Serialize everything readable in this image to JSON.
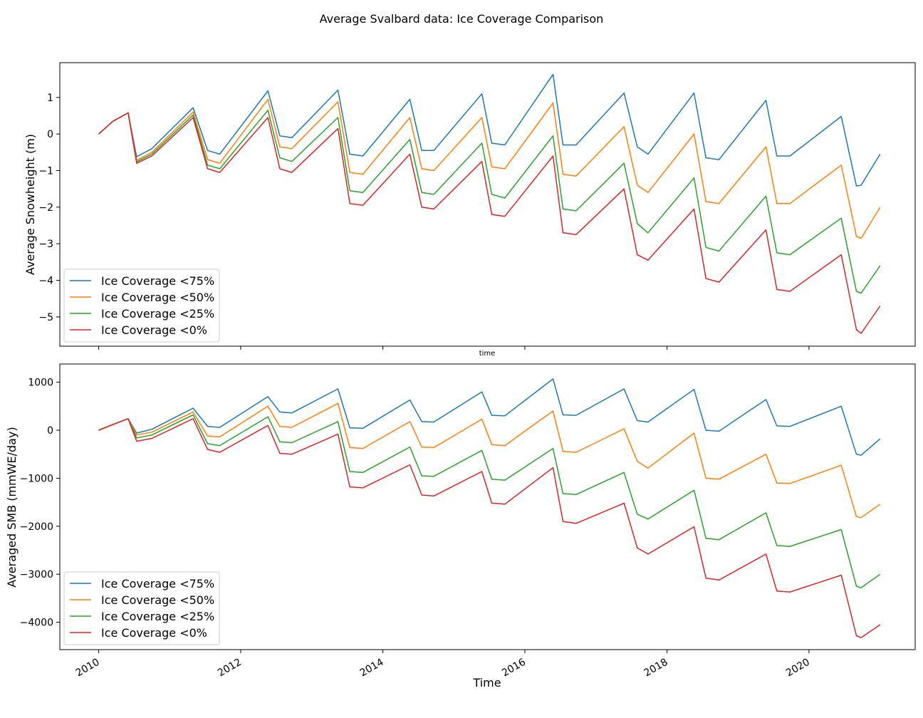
{
  "figure_title": "Average Svalbard data: Ice Coverage Comparison",
  "colors": {
    "series": [
      "#1f77b4",
      "#ff7f0e",
      "#2ca02c",
      "#d62728"
    ],
    "axis": "#000000",
    "legend_border": "#cccccc"
  },
  "chart_data": [
    {
      "type": "line",
      "title": "",
      "xlabel": "time",
      "ylabel": "Average Snowheight (m)",
      "x_axis": "date",
      "xlim": [
        "2009-06-15",
        "2021-06-30"
      ],
      "ylim": [
        -5.8,
        1.95
      ],
      "yticks": [
        1,
        0,
        -1,
        -2,
        -3,
        -4,
        -5
      ],
      "xtick_labels_shown": false,
      "legend_position": "lower-left",
      "x": [
        "2010-01-01",
        "2010-03-15",
        "2010-06-01",
        "2010-07-15",
        "2010-10-01",
        "2011-05-01",
        "2011-07-15",
        "2011-09-15",
        "2012-05-20",
        "2012-07-20",
        "2012-09-20",
        "2013-05-15",
        "2013-07-15",
        "2013-09-20",
        "2014-05-20",
        "2014-07-20",
        "2014-09-20",
        "2015-05-25",
        "2015-07-15",
        "2015-09-20",
        "2016-05-25",
        "2016-07-15",
        "2016-09-20",
        "2017-05-25",
        "2017-08-01",
        "2017-09-25",
        "2018-05-20",
        "2018-07-20",
        "2018-09-25",
        "2019-05-25",
        "2019-07-20",
        "2019-09-25",
        "2020-06-15",
        "2020-09-01",
        "2020-09-25",
        "2021-01-01"
      ],
      "series": [
        {
          "name": "Ice Coverage <75%",
          "values": [
            0.0,
            0.35,
            0.58,
            -0.62,
            -0.4,
            0.72,
            -0.45,
            -0.55,
            1.18,
            -0.05,
            -0.1,
            1.2,
            -0.55,
            -0.6,
            0.95,
            -0.45,
            -0.45,
            1.1,
            -0.25,
            -0.3,
            1.63,
            -0.3,
            -0.3,
            1.12,
            -0.35,
            -0.55,
            1.12,
            -0.65,
            -0.7,
            0.92,
            -0.6,
            -0.6,
            0.48,
            -1.42,
            -1.4,
            -0.55
          ]
        },
        {
          "name": "Ice Coverage <50%",
          "values": [
            0.0,
            0.35,
            0.58,
            -0.72,
            -0.5,
            0.6,
            -0.7,
            -0.8,
            0.95,
            -0.35,
            -0.4,
            0.88,
            -1.05,
            -1.1,
            0.45,
            -0.95,
            -1.0,
            0.45,
            -0.9,
            -0.95,
            0.85,
            -1.1,
            -1.15,
            0.2,
            -1.4,
            -1.6,
            -0.0,
            -1.85,
            -1.9,
            -0.35,
            -1.9,
            -1.9,
            -0.85,
            -2.8,
            -2.85,
            -2.0
          ]
        },
        {
          "name": "Ice Coverage <25%",
          "values": [
            0.0,
            0.35,
            0.58,
            -0.76,
            -0.55,
            0.52,
            -0.85,
            -0.95,
            0.65,
            -0.65,
            -0.75,
            0.45,
            -1.55,
            -1.6,
            -0.15,
            -1.6,
            -1.65,
            -0.25,
            -1.65,
            -1.75,
            -0.05,
            -2.05,
            -2.1,
            -0.8,
            -2.45,
            -2.7,
            -1.2,
            -3.1,
            -3.2,
            -1.7,
            -3.25,
            -3.3,
            -2.3,
            -4.3,
            -4.35,
            -3.6
          ]
        },
        {
          "name": "Ice Coverage <0%",
          "values": [
            0.0,
            0.35,
            0.58,
            -0.8,
            -0.6,
            0.45,
            -0.95,
            -1.05,
            0.45,
            -0.95,
            -1.05,
            0.15,
            -1.9,
            -1.95,
            -0.55,
            -2.0,
            -2.05,
            -0.75,
            -2.2,
            -2.25,
            -0.6,
            -2.7,
            -2.75,
            -1.5,
            -3.3,
            -3.45,
            -2.05,
            -3.95,
            -4.05,
            -2.62,
            -4.25,
            -4.3,
            -3.3,
            -5.35,
            -5.45,
            -4.7
          ]
        }
      ]
    },
    {
      "type": "line",
      "title": "",
      "xlabel": "Time",
      "ylabel": "Averaged SMB (mmWE/day)",
      "x_axis": "date",
      "xlim": [
        "2009-06-15",
        "2021-06-30"
      ],
      "ylim": [
        -4570,
        1380
      ],
      "yticks": [
        1000,
        0,
        -1000,
        -2000,
        -3000,
        -4000
      ],
      "xticks": [
        "2010",
        "2012",
        "2014",
        "2016",
        "2018",
        "2020"
      ],
      "legend_position": "lower-left",
      "x": [
        "2010-01-01",
        "2010-03-15",
        "2010-06-01",
        "2010-07-15",
        "2010-10-01",
        "2011-05-01",
        "2011-07-15",
        "2011-09-15",
        "2012-05-20",
        "2012-07-20",
        "2012-09-20",
        "2013-05-15",
        "2013-07-15",
        "2013-09-20",
        "2014-05-20",
        "2014-07-20",
        "2014-09-20",
        "2015-05-25",
        "2015-07-15",
        "2015-09-20",
        "2016-05-25",
        "2016-07-15",
        "2016-09-20",
        "2017-05-25",
        "2017-08-01",
        "2017-09-25",
        "2018-05-20",
        "2018-07-20",
        "2018-09-25",
        "2019-05-25",
        "2019-07-20",
        "2019-09-25",
        "2020-06-15",
        "2020-09-01",
        "2020-09-25",
        "2021-01-01"
      ],
      "series": [
        {
          "name": "Ice Coverage <75%",
          "values": [
            0,
            120,
            240,
            -60,
            20,
            460,
            80,
            60,
            700,
            380,
            360,
            860,
            50,
            40,
            630,
            180,
            170,
            800,
            310,
            300,
            1070,
            320,
            310,
            860,
            200,
            170,
            850,
            0,
            -20,
            640,
            90,
            80,
            500,
            -500,
            -520,
            -180
          ]
        },
        {
          "name": "Ice Coverage <50%",
          "values": [
            0,
            120,
            240,
            -100,
            -40,
            380,
            -120,
            -140,
            500,
            80,
            60,
            560,
            -360,
            -380,
            180,
            -350,
            -360,
            230,
            -300,
            -320,
            400,
            -440,
            -460,
            30,
            -650,
            -790,
            -60,
            -1000,
            -1020,
            -500,
            -1100,
            -1110,
            -730,
            -1800,
            -1820,
            -1540
          ]
        },
        {
          "name": "Ice Coverage <25%",
          "values": [
            0,
            120,
            240,
            -160,
            -100,
            320,
            -280,
            -320,
            280,
            -240,
            -260,
            180,
            -860,
            -880,
            -350,
            -950,
            -960,
            -420,
            -1020,
            -1040,
            -380,
            -1320,
            -1340,
            -880,
            -1750,
            -1850,
            -1250,
            -2250,
            -2280,
            -1720,
            -2400,
            -2420,
            -2070,
            -3250,
            -3280,
            -3000
          ]
        },
        {
          "name": "Ice Coverage <0%",
          "values": [
            0,
            120,
            240,
            -230,
            -170,
            240,
            -400,
            -460,
            100,
            -480,
            -500,
            -80,
            -1180,
            -1200,
            -720,
            -1350,
            -1370,
            -860,
            -1520,
            -1540,
            -780,
            -1900,
            -1940,
            -1520,
            -2450,
            -2580,
            -2010,
            -3080,
            -3120,
            -2580,
            -3350,
            -3370,
            -3020,
            -4280,
            -4320,
            -4050
          ]
        }
      ]
    }
  ]
}
